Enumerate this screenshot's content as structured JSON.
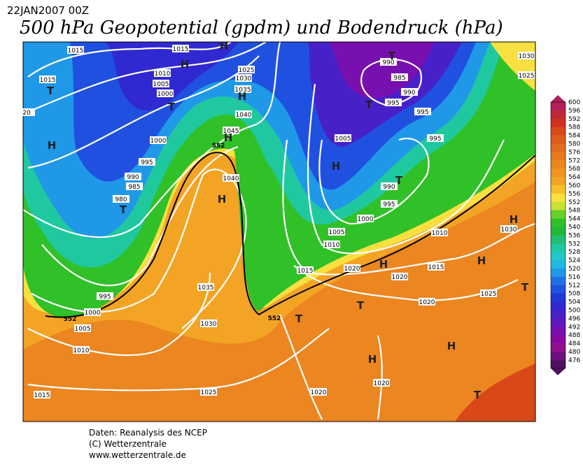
{
  "header": {
    "date": "22JAN2007 00Z",
    "title": "500 hPa Geopotential (gpdm) und Bodendruck (hPa)"
  },
  "footer": [
    "Daten: Reanalysis des NCEP",
    "(C) Wetterzentrale",
    "www.wetterzentrale.de"
  ],
  "colorbar": {
    "levels": [
      600,
      596,
      592,
      588,
      584,
      580,
      576,
      572,
      568,
      564,
      560,
      556,
      552,
      548,
      544,
      540,
      536,
      532,
      528,
      524,
      520,
      516,
      512,
      508,
      504,
      500,
      496,
      492,
      488,
      484,
      480,
      476
    ],
    "colors": [
      "#b0205a",
      "#c02838",
      "#d03020",
      "#d84818",
      "#e05a18",
      "#e46a1c",
      "#e8781e",
      "#ec8620",
      "#f09422",
      "#f4a424",
      "#f8c028",
      "#f8e040",
      "#c8e030",
      "#68d028",
      "#30c028",
      "#20b838",
      "#20c070",
      "#20c8a0",
      "#20c8c8",
      "#20b8e0",
      "#2098e8",
      "#2070e8",
      "#2050e0",
      "#2038d8",
      "#3028d0",
      "#4820c8",
      "#6018c0",
      "#7810b0",
      "#8808a0",
      "#901090",
      "#701080",
      "#501060"
    ]
  },
  "isobar_labels": [
    "1015",
    "1015",
    "1015",
    "1010",
    "1005",
    "1000",
    "1025",
    "1030",
    "1035",
    "1040",
    "1045",
    "1000",
    "995",
    "990",
    "985",
    "980",
    "1040",
    "990",
    "985",
    "990",
    "995",
    "995",
    "995",
    "1005",
    "990",
    "995",
    "1000",
    "1005",
    "1010",
    "1010",
    "1015",
    "1020",
    "1020",
    "1015",
    "1030",
    "1025",
    "1020",
    "995",
    "1000",
    "1005",
    "1010",
    "1035",
    "1030",
    "1025",
    "1020",
    "1020",
    "1015",
    "20",
    "1030",
    "1025"
  ],
  "pressure_centers": [
    "T",
    "H",
    "T",
    "H",
    "H",
    "H",
    "H",
    "T",
    "H",
    "T",
    "T",
    "H",
    "T",
    "H",
    "T",
    "T",
    "H",
    "H",
    "T",
    "H",
    "H",
    "T"
  ],
  "contour_labels": [
    "552",
    "552",
    "552"
  ]
}
